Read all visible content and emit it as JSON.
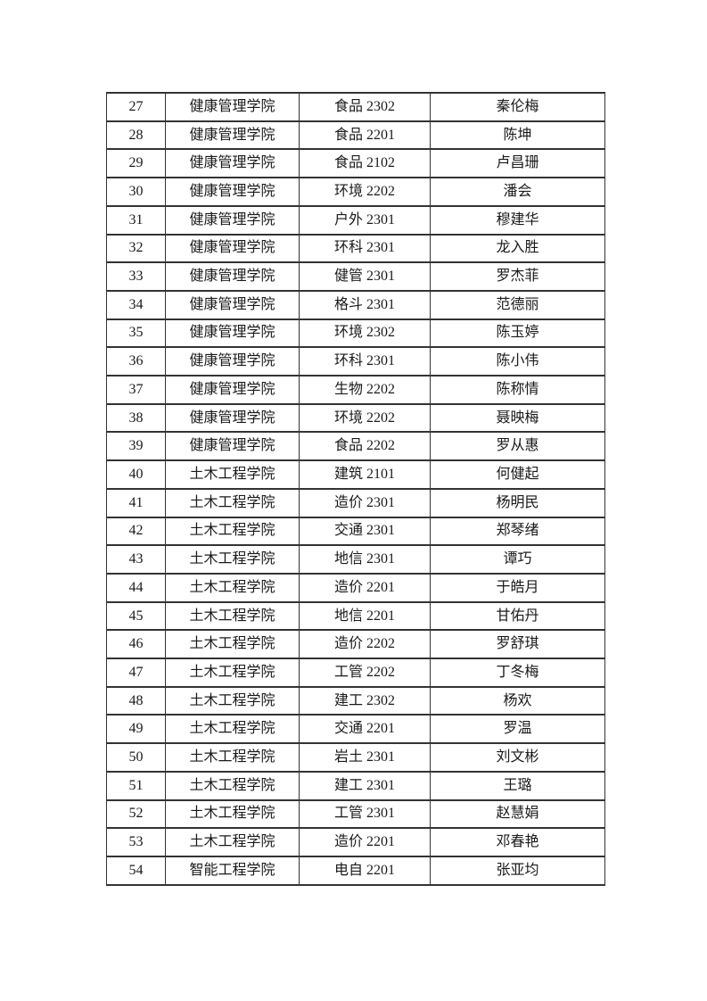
{
  "page": {
    "background": "#ffffff",
    "text_color": "#1a1a1a",
    "table_border_color": "#333333"
  },
  "table": {
    "fields": [
      "no",
      "college",
      "class_name",
      "student_name"
    ],
    "rows": [
      {
        "no": "27",
        "college": "健康管理学院",
        "class_name": "食品 2302",
        "student_name": "秦伦梅"
      },
      {
        "no": "28",
        "college": "健康管理学院",
        "class_name": "食品 2201",
        "student_name": "陈坤"
      },
      {
        "no": "29",
        "college": "健康管理学院",
        "class_name": "食品 2102",
        "student_name": "卢昌珊"
      },
      {
        "no": "30",
        "college": "健康管理学院",
        "class_name": "环境 2202",
        "student_name": "潘会"
      },
      {
        "no": "31",
        "college": "健康管理学院",
        "class_name": "户外 2301",
        "student_name": "穆建华"
      },
      {
        "no": "32",
        "college": "健康管理学院",
        "class_name": "环科 2301",
        "student_name": "龙入胜"
      },
      {
        "no": "33",
        "college": "健康管理学院",
        "class_name": "健管 2301",
        "student_name": "罗杰菲"
      },
      {
        "no": "34",
        "college": "健康管理学院",
        "class_name": "格斗 2301",
        "student_name": "范德丽"
      },
      {
        "no": "35",
        "college": "健康管理学院",
        "class_name": "环境 2302",
        "student_name": "陈玉婷"
      },
      {
        "no": "36",
        "college": "健康管理学院",
        "class_name": "环科 2301",
        "student_name": "陈小伟"
      },
      {
        "no": "37",
        "college": "健康管理学院",
        "class_name": "生物 2202",
        "student_name": "陈称情"
      },
      {
        "no": "38",
        "college": "健康管理学院",
        "class_name": "环境 2202",
        "student_name": "聂映梅"
      },
      {
        "no": "39",
        "college": "健康管理学院",
        "class_name": "食品 2202",
        "student_name": "罗从惠"
      },
      {
        "no": "40",
        "college": "土木工程学院",
        "class_name": "建筑 2101",
        "student_name": "何健起"
      },
      {
        "no": "41",
        "college": "土木工程学院",
        "class_name": "造价 2301",
        "student_name": "杨明民"
      },
      {
        "no": "42",
        "college": "土木工程学院",
        "class_name": "交通 2301",
        "student_name": "郑琴绪"
      },
      {
        "no": "43",
        "college": "土木工程学院",
        "class_name": "地信 2301",
        "student_name": "谭巧"
      },
      {
        "no": "44",
        "college": "土木工程学院",
        "class_name": "造价 2201",
        "student_name": "于皓月"
      },
      {
        "no": "45",
        "college": "土木工程学院",
        "class_name": "地信 2201",
        "student_name": "甘佑丹"
      },
      {
        "no": "46",
        "college": "土木工程学院",
        "class_name": "造价 2202",
        "student_name": "罗舒琪"
      },
      {
        "no": "47",
        "college": "土木工程学院",
        "class_name": "工管 2202",
        "student_name": "丁冬梅"
      },
      {
        "no": "48",
        "college": "土木工程学院",
        "class_name": "建工 2302",
        "student_name": "杨欢"
      },
      {
        "no": "49",
        "college": "土木工程学院",
        "class_name": "交通 2201",
        "student_name": "罗温"
      },
      {
        "no": "50",
        "college": "土木工程学院",
        "class_name": "岩土 2301",
        "student_name": "刘文彬"
      },
      {
        "no": "51",
        "college": "土木工程学院",
        "class_name": "建工 2301",
        "student_name": "王璐"
      },
      {
        "no": "52",
        "college": "土木工程学院",
        "class_name": "工管 2301",
        "student_name": "赵慧娟"
      },
      {
        "no": "53",
        "college": "土木工程学院",
        "class_name": "造价 2201",
        "student_name": "邓春艳"
      },
      {
        "no": "54",
        "college": "智能工程学院",
        "class_name": "电自 2201",
        "student_name": "张亚均"
      }
    ]
  }
}
